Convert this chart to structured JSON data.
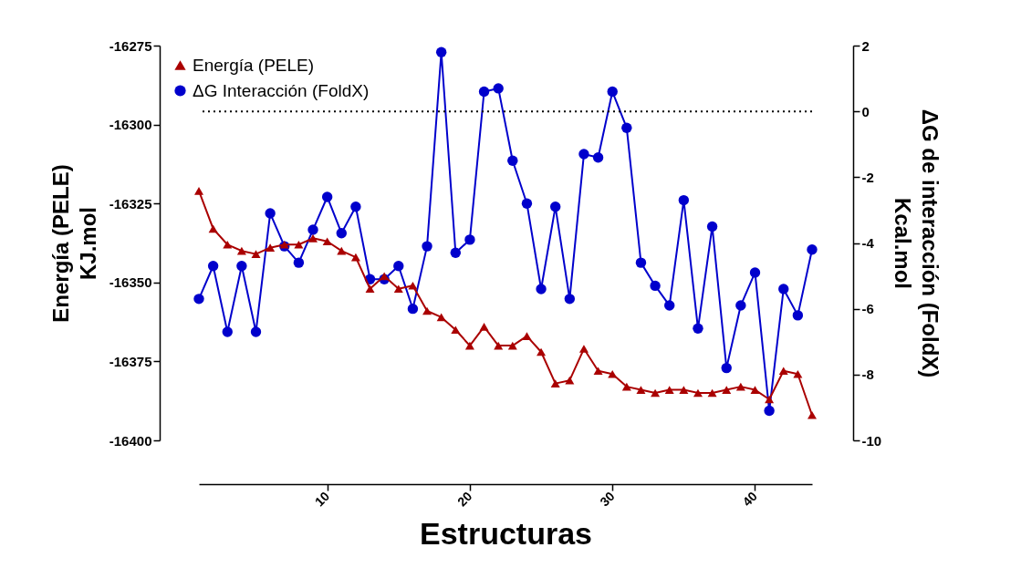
{
  "chart_data": {
    "type": "line",
    "xlabel": "Estructuras",
    "ylabel": "Energía (PELE)\nKJ.mol",
    "y2label": "ΔG de interacción (FoldX)\nKcal.mol",
    "x": [
      1,
      2,
      3,
      4,
      5,
      6,
      7,
      8,
      9,
      10,
      11,
      12,
      13,
      14,
      15,
      16,
      17,
      18,
      19,
      20,
      21,
      22,
      23,
      24,
      25,
      26,
      27,
      28,
      29,
      30,
      31,
      32,
      33,
      34,
      35,
      36,
      37,
      38,
      39,
      40,
      41,
      42,
      43,
      44
    ],
    "series": [
      {
        "name": "Energía (PELE)",
        "color": "#aa0000",
        "marker": "triangle",
        "values": [
          -16321,
          -16333,
          -16338,
          -16340,
          -16341,
          -16339,
          -16338,
          -16338,
          -16336,
          -16337,
          -16340,
          -16342,
          -16352,
          -16348,
          -16352,
          -16351,
          -16359,
          -16361,
          -16365,
          -16370,
          -16364,
          -16370,
          -16370,
          -16367,
          -16372,
          -16382,
          -16381,
          -16371,
          -16378,
          -16379,
          -16383,
          -16384,
          -16385,
          -16384,
          -16384,
          -16385,
          -16385,
          -16384,
          -16383,
          -16384,
          -16387,
          -16378,
          -16379,
          -16392
        ]
      },
      {
        "name": "ΔG Interacción (FoldX)",
        "color": "#0000cc",
        "marker": "circle",
        "axis": "y2",
        "values": [
          -5.7,
          -4.7,
          -6.7,
          -4.7,
          -6.7,
          -3.1,
          -4.1,
          -4.6,
          -3.6,
          -2.6,
          -3.7,
          -2.9,
          -5.1,
          -5.1,
          -4.7,
          -6.0,
          -4.1,
          1.8,
          -4.3,
          -3.9,
          0.6,
          0.7,
          -1.5,
          -2.8,
          -5.4,
          -2.9,
          -5.7,
          -1.3,
          -1.4,
          0.6,
          -0.5,
          -4.6,
          -5.3,
          -5.9,
          -2.7,
          -6.6,
          -3.5,
          -7.8,
          -5.9,
          -4.9,
          -9.1,
          -5.4,
          -6.2,
          -4.2
        ]
      }
    ],
    "xlim": [
      1,
      44
    ],
    "xticks": [
      10,
      20,
      30,
      40
    ],
    "ylim": [
      -16400,
      -16275
    ],
    "yticks": [
      -16400,
      -16375,
      -16350,
      -16325,
      -16300,
      -16275
    ],
    "y2lim": [
      -10,
      2
    ],
    "y2ticks": [
      -10,
      -8,
      -6,
      -4,
      -2,
      0,
      2
    ],
    "ref_lines": [
      {
        "axis": "y2",
        "value": 0,
        "color": "#000000",
        "line_style": "dotted"
      }
    ],
    "grid": false,
    "legend": "top left",
    "line_style": "solid"
  }
}
